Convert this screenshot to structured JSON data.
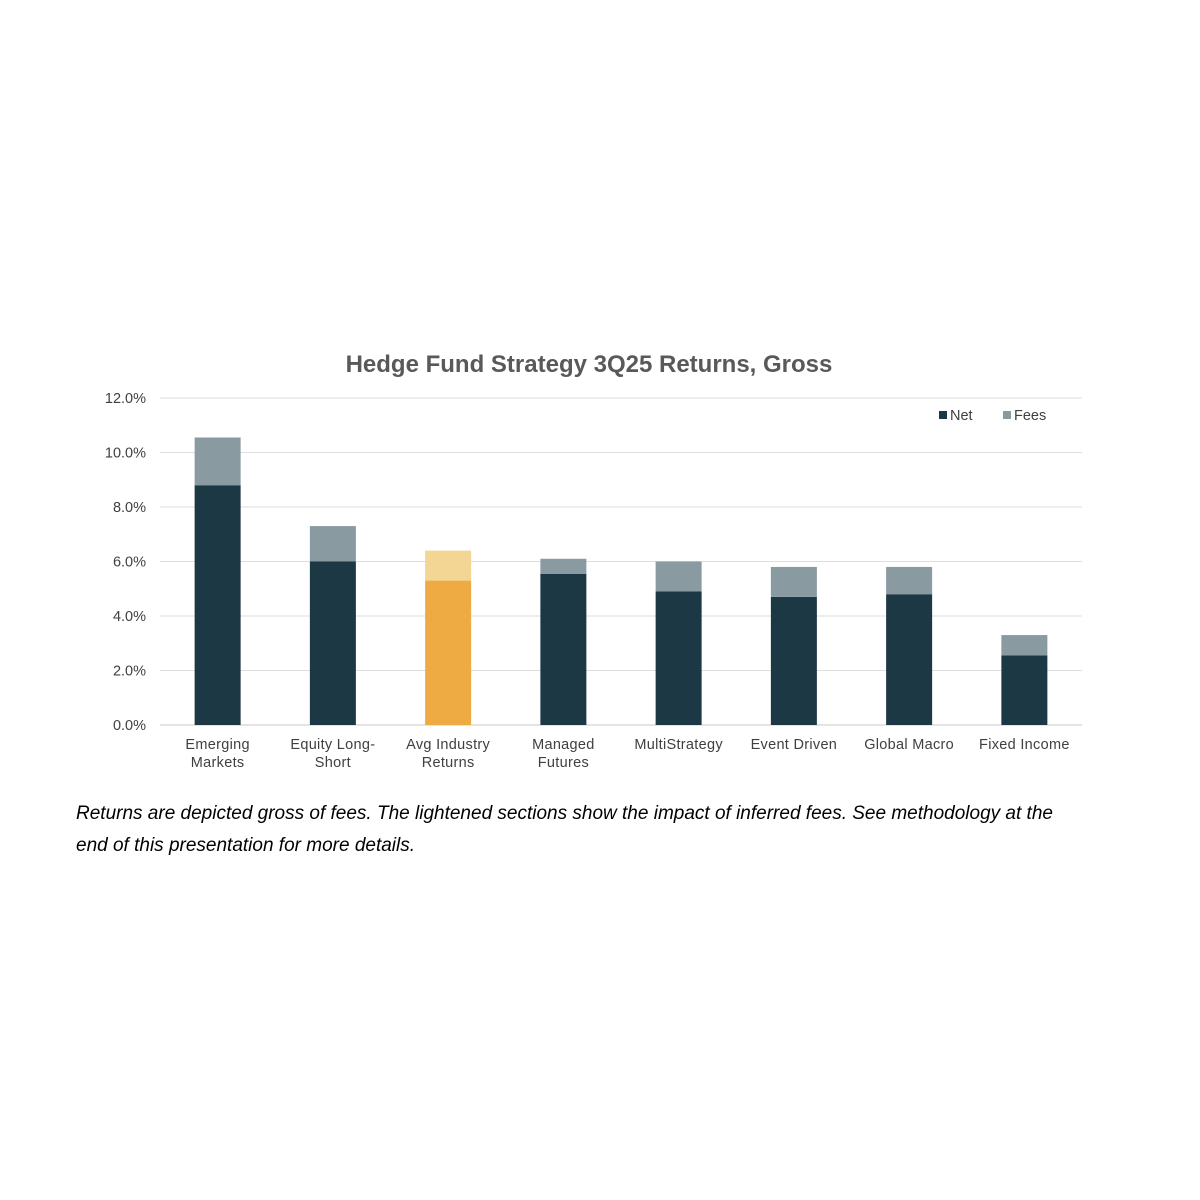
{
  "chart_data": {
    "type": "bar",
    "stacked": true,
    "title": "Hedge Fund Strategy 3Q25 Returns, Gross",
    "xlabel": "",
    "ylabel": "",
    "ylim": [
      0,
      12
    ],
    "yticks": [
      "0.0%",
      "2.0%",
      "4.0%",
      "6.0%",
      "8.0%",
      "10.0%",
      "12.0%"
    ],
    "grid": true,
    "legend_position": "top-right",
    "categories": [
      [
        "Emerging",
        "Markets"
      ],
      [
        "Equity Long-",
        "Short"
      ],
      [
        "Avg Industry",
        "Returns"
      ],
      [
        "Managed",
        "Futures"
      ],
      [
        "MultiStrategy"
      ],
      [
        "Event Driven"
      ],
      [
        "Global Macro"
      ],
      [
        "Fixed Income"
      ]
    ],
    "series": [
      {
        "name": "Net",
        "color": "#1d3845",
        "values": [
          8.8,
          6.0,
          5.3,
          5.55,
          4.9,
          4.7,
          4.8,
          2.55
        ]
      },
      {
        "name": "Fees",
        "color": "#8a9aa1",
        "values": [
          1.75,
          1.3,
          1.1,
          0.55,
          1.1,
          1.1,
          1.0,
          0.75
        ]
      }
    ],
    "highlight": {
      "category_index": 2,
      "net_color": "#eeab44",
      "fees_color": "#f3d693"
    }
  },
  "caption": {
    "line1": "Returns are depicted gross of fees.  The lightened sections show the impact of inferred fees.  See methodology at the",
    "line2": "end of this presentation for more details."
  }
}
